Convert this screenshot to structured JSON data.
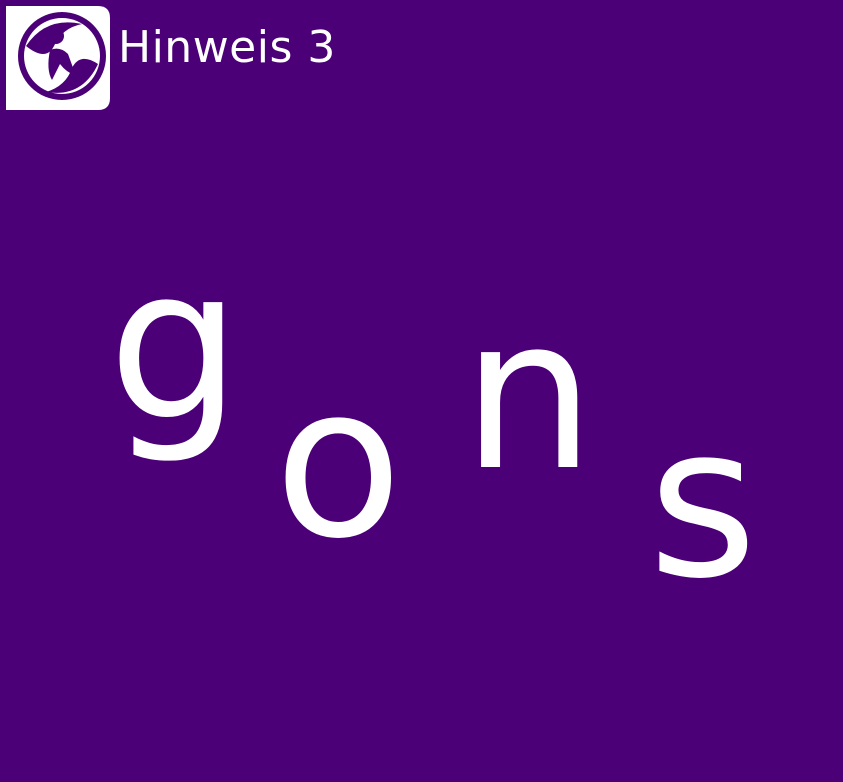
{
  "header": {
    "title": "Hinweis 3",
    "logo_icon": "figure-logo-icon"
  },
  "puzzle": {
    "letters": [
      "g",
      "o",
      "n",
      "s"
    ]
  },
  "colors": {
    "background": "#4b0078",
    "foreground": "#ffffff"
  }
}
